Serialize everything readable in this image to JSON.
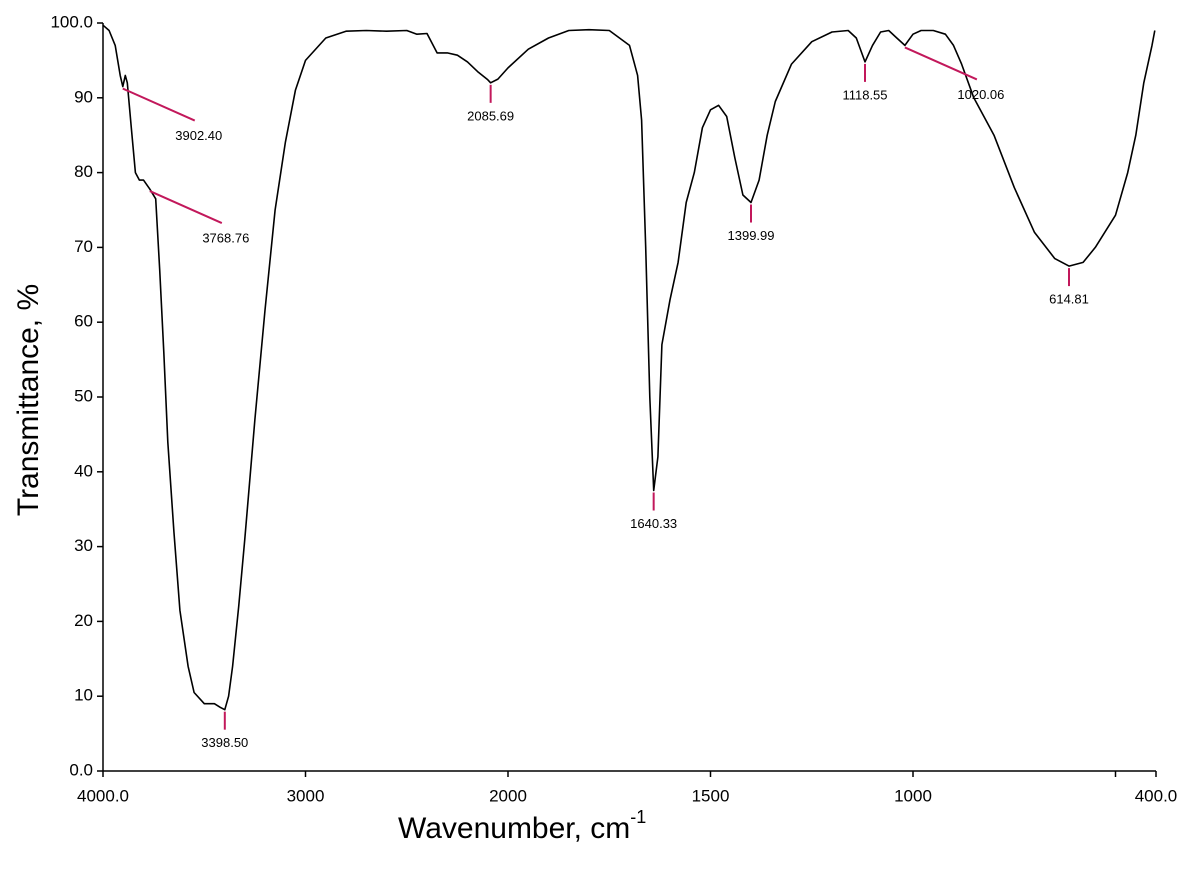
{
  "chart_data": {
    "type": "line",
    "x_label": "Wavenumber, cm",
    "x_label_sup": "-1",
    "y_label": "Transmittance,  %",
    "xlim": [
      4000,
      400
    ],
    "x_break": 2000,
    "xticks": [
      {
        "value": 4000,
        "label": "4000.0"
      },
      3000,
      2000,
      1500,
      1000,
      {
        "value": 400,
        "label": "400.0"
      }
    ],
    "x_minor_ticks": [
      500
    ],
    "ylim": [
      0,
      100
    ],
    "yticks": [
      {
        "value": 0,
        "label": "0.0"
      },
      10,
      20,
      30,
      40,
      50,
      60,
      70,
      80,
      90,
      {
        "value": 100,
        "label": "100.0"
      }
    ],
    "color": "#000000",
    "leader_color": "#c2185b",
    "x": [
      4000,
      3970,
      3940,
      3915,
      3902.4,
      3890,
      3880,
      3860,
      3840,
      3820,
      3800,
      3768.76,
      3740,
      3720,
      3700,
      3680,
      3650,
      3620,
      3580,
      3550,
      3500,
      3450,
      3420,
      3398.5,
      3380,
      3360,
      3330,
      3300,
      3250,
      3200,
      3150,
      3100,
      3050,
      3000,
      2900,
      2800,
      2700,
      2600,
      2500,
      2450,
      2400,
      2350,
      2300,
      2250,
      2200,
      2150,
      2100,
      2085.69,
      2050,
      2000,
      1950,
      1900,
      1850,
      1800,
      1750,
      1700,
      1680,
      1670,
      1660,
      1650,
      1640.33,
      1630,
      1620,
      1600,
      1580,
      1560,
      1540,
      1520,
      1500,
      1480,
      1460,
      1440,
      1420,
      1399.99,
      1380,
      1360,
      1340,
      1300,
      1250,
      1200,
      1160,
      1140,
      1118.55,
      1100,
      1080,
      1060,
      1040,
      1020.06,
      1000,
      980,
      950,
      920,
      900,
      880,
      850,
      800,
      750,
      700,
      650,
      614.81,
      580,
      550,
      500,
      470,
      450,
      430,
      410,
      403
    ],
    "values": [
      99.7,
      99,
      97,
      93,
      91.5,
      93,
      92,
      86,
      80,
      79,
      79,
      77.8,
      76.5,
      67,
      56,
      44,
      32,
      21.5,
      14,
      10.5,
      9,
      9,
      8.5,
      8.2,
      10,
      14,
      22,
      31,
      47,
      61.6,
      75,
      84,
      91,
      95,
      98,
      98.9,
      99,
      98.9,
      99,
      98.5,
      98.6,
      96,
      96,
      95.7,
      94.8,
      93.5,
      92.4,
      92,
      92.5,
      94,
      96.5,
      98,
      99,
      99.1,
      99,
      97,
      93,
      87,
      70,
      50,
      37.5,
      42,
      57,
      63,
      68,
      76,
      80,
      86,
      88.4,
      89,
      87.5,
      82,
      77,
      76,
      79,
      85,
      89.5,
      94.5,
      97.5,
      98.8,
      99,
      98,
      94.8,
      97,
      98.8,
      99,
      98,
      97,
      98.5,
      99,
      99,
      98.5,
      97,
      94.5,
      90,
      85,
      78,
      72,
      68.5,
      67.5,
      68,
      70,
      74.3,
      80,
      85,
      92,
      97,
      99
    ],
    "peaks": [
      {
        "label": "3902.40",
        "x": 3902.4,
        "y": 91.5,
        "leader": "slant"
      },
      {
        "label": "3768.76",
        "x": 3768.76,
        "y": 77.8,
        "leader": "slant"
      },
      {
        "label": "3398.50",
        "x": 3398.5,
        "y": 8.2,
        "leader": "down"
      },
      {
        "label": "2085.69",
        "x": 2085.69,
        "y": 92,
        "leader": "down"
      },
      {
        "label": "1640.33",
        "x": 1640.33,
        "y": 37.5,
        "leader": "down"
      },
      {
        "label": "1399.99",
        "x": 1399.99,
        "y": 76,
        "leader": "down"
      },
      {
        "label": "1118.55",
        "x": 1118.55,
        "y": 94.8,
        "leader": "down"
      },
      {
        "label": "1020.06",
        "x": 1020.06,
        "y": 97,
        "leader": "slant"
      },
      {
        "label": "614.81",
        "x": 614.81,
        "y": 67.5,
        "leader": "down"
      }
    ]
  }
}
